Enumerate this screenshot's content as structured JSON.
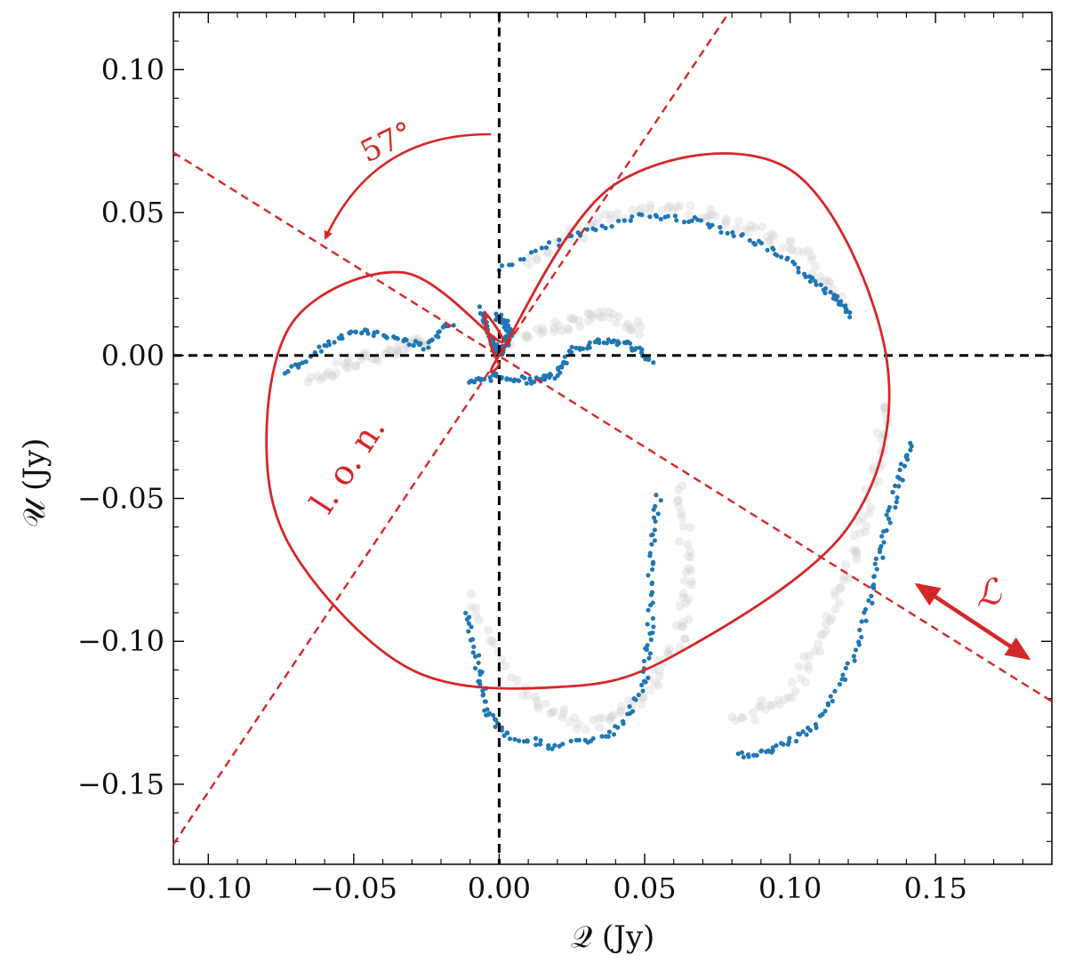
{
  "chart_data": {
    "type": "scatter",
    "xlabel": "𝒬 (Jy)",
    "ylabel": "𝒰 (Jy)",
    "xlim": [
      -0.112,
      0.19
    ],
    "ylim": [
      -0.178,
      0.12
    ],
    "xticks": [
      -0.1,
      -0.05,
      0.0,
      0.05,
      0.1,
      0.15
    ],
    "xtick_labels": [
      "−0.10",
      "−0.05",
      "0.00",
      "0.05",
      "0.10",
      "0.15"
    ],
    "yticks": [
      -0.15,
      -0.1,
      -0.05,
      0.0,
      0.05,
      0.1
    ],
    "ytick_labels": [
      "−0.15",
      "−0.10",
      "−0.05",
      "0.00",
      "0.05",
      "0.10"
    ],
    "grid": false,
    "colors": {
      "data": "#1f77b4",
      "background": "#cfcfcf",
      "model": "#d62728",
      "reference": "#000000"
    },
    "reference_lines": [
      {
        "name": "Q-zero",
        "orientation": "vertical",
        "value": 0.0
      },
      {
        "name": "U-zero",
        "orientation": "horizontal",
        "value": 0.0
      }
    ],
    "model_lines": [
      {
        "name": "line of nodes",
        "points": [
          [
            -0.112,
            -0.171
          ],
          [
            0.079,
            0.12
          ]
        ]
      },
      {
        "name": "perpendicular",
        "points": [
          [
            -0.112,
            0.071
          ],
          [
            0.19,
            -0.121
          ]
        ]
      }
    ],
    "model_curve_anchor_points": [
      [
        0.0,
        0.0
      ],
      [
        0.04,
        0.06
      ],
      [
        0.1,
        0.065
      ],
      [
        0.133,
        0.0
      ],
      [
        0.12,
        -0.06
      ],
      [
        0.06,
        -0.105
      ],
      [
        0.02,
        -0.116
      ],
      [
        -0.03,
        -0.11
      ],
      [
        -0.07,
        -0.07
      ],
      [
        -0.08,
        -0.03
      ],
      [
        -0.07,
        0.013
      ],
      [
        -0.033,
        0.029
      ],
      [
        0.0,
        0.005
      ],
      [
        -0.005,
        0.015
      ],
      [
        -0.003,
        0.004
      ],
      [
        0.0,
        -0.003
      ]
    ],
    "annotations": {
      "angle_label": "57°",
      "lon_label": "l. o. n.",
      "l_label": "ℒ"
    },
    "series": [
      {
        "name": "observed (blue)",
        "tracks": [
          {
            "x": [
              0.0,
              0.025,
              0.05,
              0.07,
              0.09,
              0.105,
              0.115,
              0.121
            ],
            "y": [
              0.03,
              0.042,
              0.049,
              0.047,
              0.039,
              0.029,
              0.021,
              0.014
            ]
          },
          {
            "x": [
              -0.074,
              -0.06,
              -0.048,
              -0.035,
              -0.025,
              -0.016
            ],
            "y": [
              -0.007,
              0.003,
              0.009,
              0.006,
              0.003,
              0.012
            ]
          },
          {
            "x": [
              -0.006,
              -0.004,
              -0.002,
              0.0,
              0.002,
              0.004,
              0.002,
              -0.001
            ],
            "y": [
              0.016,
              0.01,
              0.004,
              0.001,
              0.003,
              0.007,
              0.011,
              0.014
            ]
          },
          {
            "x": [
              -0.01,
              -0.001,
              0.01,
              0.02,
              0.025,
              0.035,
              0.045,
              0.053
            ],
            "y": [
              -0.01,
              -0.007,
              -0.009,
              -0.007,
              0.002,
              0.005,
              0.004,
              -0.003
            ]
          },
          {
            "x": [
              -0.011,
              -0.007,
              -0.004,
              0.003,
              0.02,
              0.04,
              0.05,
              0.052,
              0.052,
              0.055
            ],
            "y": [
              -0.09,
              -0.11,
              -0.125,
              -0.133,
              -0.137,
              -0.132,
              -0.115,
              -0.095,
              -0.07,
              -0.048
            ]
          },
          {
            "x": [
              0.083,
              0.095,
              0.108,
              0.12,
              0.128,
              0.132,
              0.137,
              0.142
            ],
            "y": [
              -0.14,
              -0.138,
              -0.13,
              -0.11,
              -0.085,
              -0.065,
              -0.045,
              -0.03
            ]
          }
        ]
      },
      {
        "name": "model (gray)",
        "tracks": [
          {
            "x": [
              0.01,
              0.035,
              0.06,
              0.085,
              0.105,
              0.12
            ],
            "y": [
              0.032,
              0.048,
              0.052,
              0.046,
              0.035,
              0.018
            ]
          },
          {
            "x": [
              -0.065,
              -0.05,
              -0.035,
              -0.025
            ],
            "y": [
              -0.008,
              -0.002,
              0.001,
              0.006
            ]
          },
          {
            "x": [
              0.0,
              0.02,
              0.035,
              0.05
            ],
            "y": [
              0.005,
              0.01,
              0.014,
              0.009
            ]
          },
          {
            "x": [
              -0.01,
              0.01,
              0.03,
              0.05,
              0.062,
              0.065,
              0.062
            ],
            "y": [
              -0.085,
              -0.12,
              -0.13,
              -0.12,
              -0.1,
              -0.075,
              -0.045
            ]
          },
          {
            "x": [
              0.082,
              0.1,
              0.113,
              0.122,
              0.13,
              0.133
            ],
            "y": [
              -0.128,
              -0.118,
              -0.095,
              -0.07,
              -0.04,
              -0.015
            ]
          }
        ]
      }
    ]
  }
}
